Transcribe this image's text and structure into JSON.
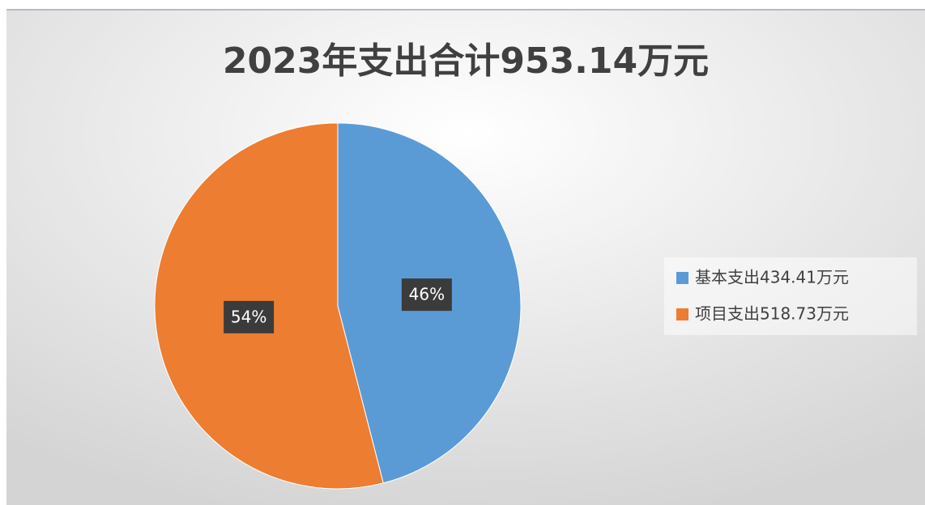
{
  "chart_data": {
    "type": "pie",
    "title": "2023年支出合计953.14万元",
    "categories": [
      "基本支出434.41万元",
      "项目支出518.73万元"
    ],
    "values": [
      46,
      54
    ],
    "value_labels": [
      "46%",
      "54%"
    ],
    "colors": [
      "#5b9bd5",
      "#ed7d31"
    ],
    "legend": "right"
  }
}
